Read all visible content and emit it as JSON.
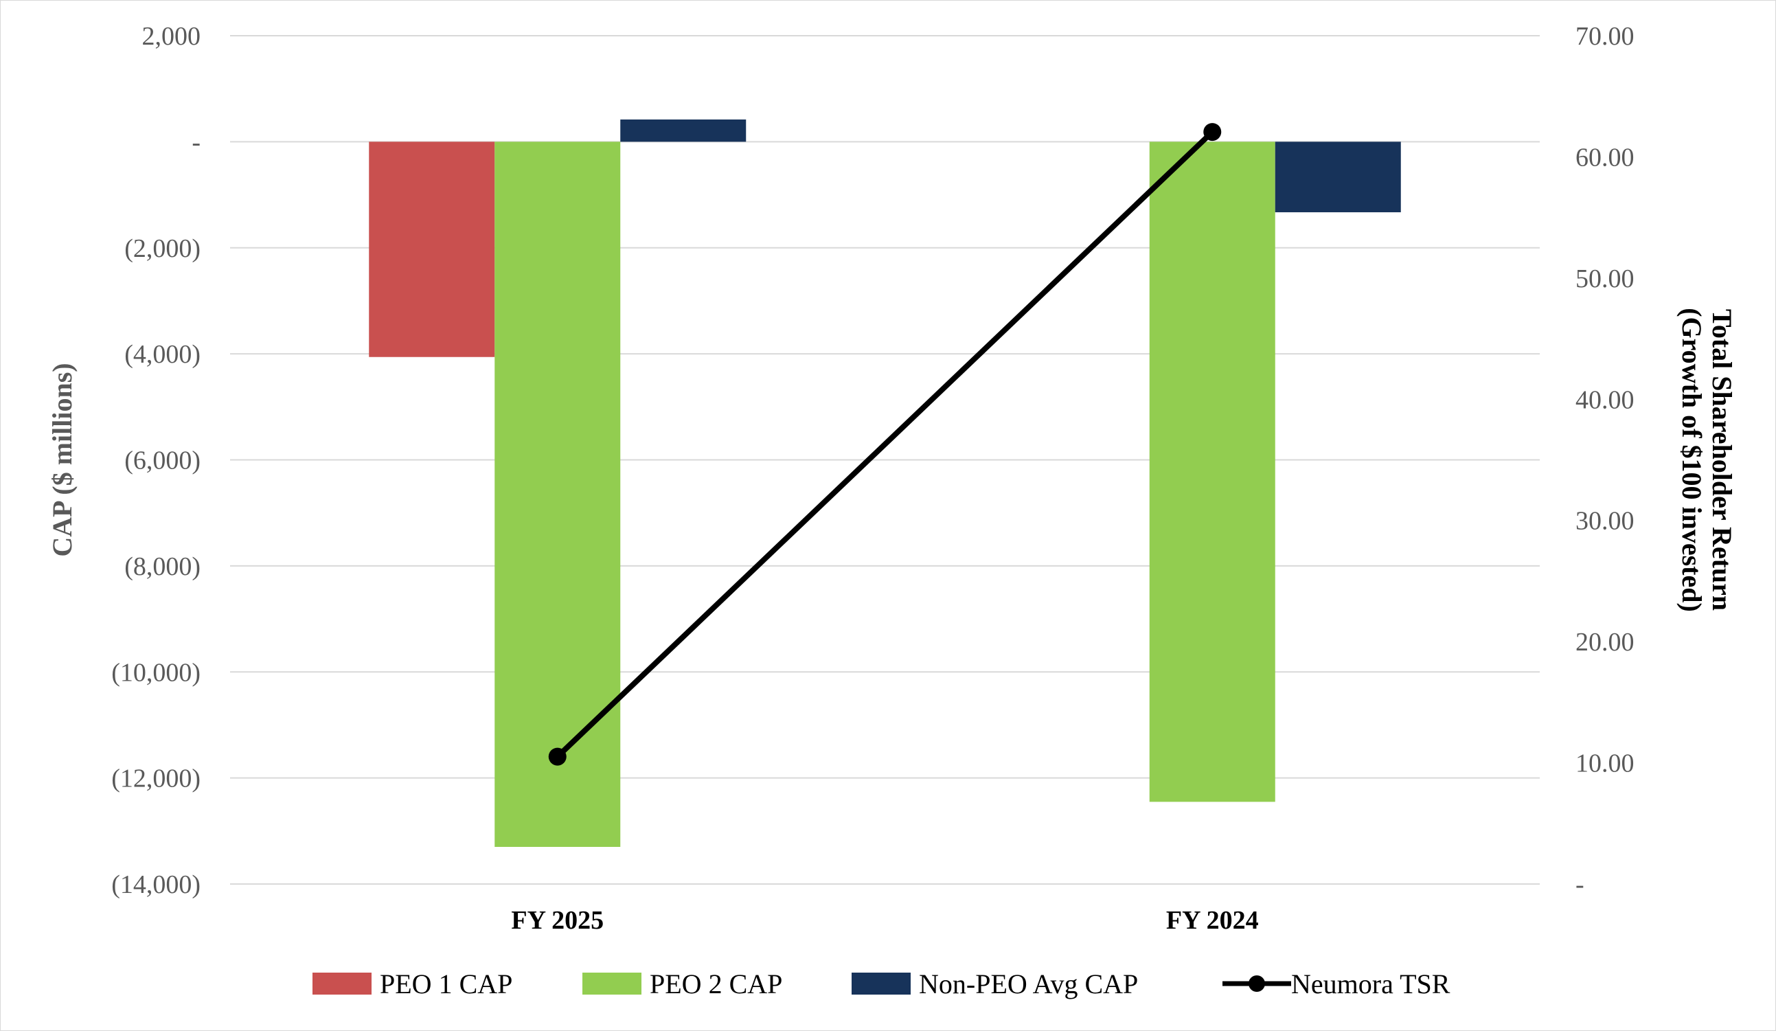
{
  "chart_data": {
    "type": "bar",
    "categories": [
      "FY 2025",
      "FY 2024"
    ],
    "series": [
      {
        "name": "PEO 1 CAP",
        "kind": "bar",
        "axis": "left",
        "color": "#C9504F",
        "values": [
          -4060,
          null
        ]
      },
      {
        "name": "PEO 2 CAP",
        "kind": "bar",
        "axis": "left",
        "color": "#92CD50",
        "values": [
          -13300,
          -12450
        ]
      },
      {
        "name": "Non-PEO Avg CAP",
        "kind": "bar",
        "axis": "left",
        "color": "#17335A",
        "values": [
          420,
          -1330
        ]
      },
      {
        "name": "Neumora TSR",
        "kind": "line",
        "axis": "right",
        "color": "#000000",
        "values": [
          10.51,
          62.06
        ]
      }
    ],
    "ylabel": "CAP ($ millions)",
    "y2label_line1": "Total Shareholder  Return",
    "y2label_line2": "(Growth of $100 invested)",
    "ylim": [
      -14000,
      2000
    ],
    "y2lim": [
      0,
      70
    ],
    "yticks": [
      2000,
      0,
      -2000,
      -4000,
      -6000,
      -8000,
      -10000,
      -12000,
      -14000
    ],
    "ytick_labels": [
      "2,000",
      "-",
      "(2,000)",
      "(4,000)",
      "(6,000)",
      "(8,000)",
      "(10,000)",
      "(12,000)",
      "(14,000)"
    ],
    "y2ticks": [
      70,
      60,
      50,
      40,
      30,
      20,
      10,
      0
    ],
    "y2tick_labels": [
      "70.00",
      "60.00",
      "50.00",
      "40.00",
      "30.00",
      "20.00",
      "10.00",
      "-"
    ],
    "grid": true,
    "legend_position": "bottom"
  }
}
